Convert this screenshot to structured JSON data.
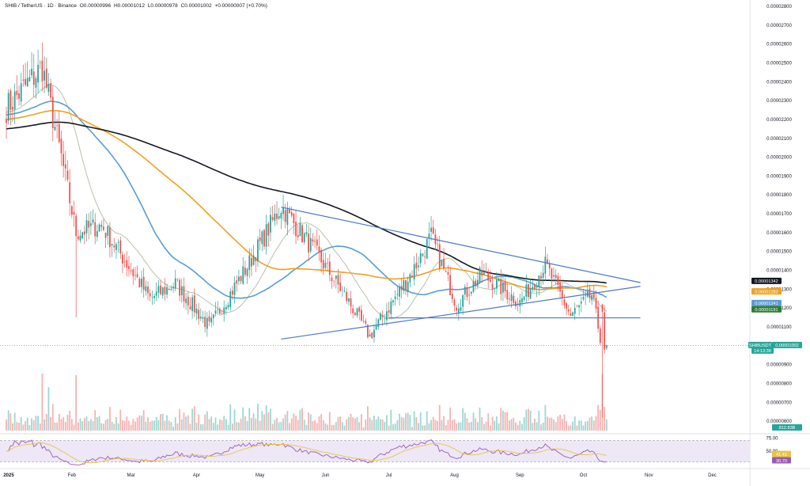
{
  "header": {
    "symbol_line": "SHIB / TetherUS · 1D · Binance",
    "open": "O0.00000996",
    "high": "H0.00001012",
    "low": "L0.00000978",
    "close": "C0.00001002",
    "change": "+0.00000007 (+0.70%)"
  },
  "colors": {
    "up": "#26a69a",
    "down": "#ef5350",
    "ma_short": "#b5c2a8",
    "ma_mid": "#5b9bd5",
    "ma_orange": "#f0a020",
    "ma_black": "#131722",
    "trendline": "#4a78c8",
    "rsi": "#9b59b6",
    "rsi_ma": "#e8c547",
    "rsi_band": "#ede7f6"
  },
  "chart_data": [
    {
      "type": "candlestick",
      "symbol": "SHIB/USDT",
      "timeframe": "1D",
      "exchange": "Binance",
      "y_ticks": [
        "0.00002800",
        "0.00002700",
        "0.00002600",
        "0.00002500",
        "0.00002400",
        "0.00002300",
        "0.00002200",
        "0.00002100",
        "0.00002000",
        "0.00001900",
        "0.00001800",
        "0.00001700",
        "0.00001600",
        "0.00001500",
        "0.00001400",
        "0.00001300",
        "0.00001200",
        "0.00001100",
        "0.00001000",
        "0.00000900",
        "0.00000800",
        "0.00000700",
        "0.00000600"
      ],
      "ylim": [
        5.5e-06,
        2.8e-05
      ],
      "x_labels": [
        "2025",
        "Feb",
        "Mar",
        "Apr",
        "May",
        "Jun",
        "Jul",
        "Aug",
        "Sep",
        "Oct",
        "Nov",
        "Dec"
      ],
      "price_labels": [
        {
          "text": "0.00001342",
          "color": "#131722",
          "value": 1.342e-05
        },
        {
          "text": "0.00001282",
          "color": "#f0a020",
          "value": 1.282e-05
        },
        {
          "text": "0.00001241",
          "color": "#5b9bd5",
          "value": 1.241e-05
        },
        {
          "text": "0.00001191",
          "color": "#2e7d32",
          "value": 1.191e-05
        },
        {
          "text": "SHIBUSDT",
          "color": "#26a69a",
          "value": 1.002e-05
        },
        {
          "text": "0.00001002",
          "color": "#26a69a",
          "value": 1.002e-05
        },
        {
          "text": "14:13:38",
          "color": "#26a69a",
          "value": 1.002e-05
        }
      ],
      "triangle_lines": [
        {
          "from": [
            "2025-05-11",
            1.735e-05
          ],
          "to": [
            "2025-10-28",
            1.335e-05
          ]
        },
        {
          "from": [
            "2025-05-11",
            1.035e-05
          ],
          "to": [
            "2025-10-28",
            1.315e-05
          ]
        }
      ],
      "support_line": {
        "from": [
          "2025-07-01",
          1.148e-05
        ],
        "to": [
          "2025-10-28",
          1.148e-05
        ]
      },
      "candles_ohlc_keypoints": [
        {
          "date": "2025-01-01",
          "close": 2.26e-05
        },
        {
          "date": "2025-01-18",
          "close": 2.48e-05
        },
        {
          "date": "2025-01-27",
          "close": 2e-05
        },
        {
          "date": "2025-02-03",
          "close": 1.6e-05
        },
        {
          "date": "2025-02-15",
          "close": 1.64e-05
        },
        {
          "date": "2025-03-10",
          "close": 1.25e-05
        },
        {
          "date": "2025-03-22",
          "close": 1.33e-05
        },
        {
          "date": "2025-04-07",
          "close": 1.1e-05
        },
        {
          "date": "2025-04-25",
          "close": 1.42e-05
        },
        {
          "date": "2025-05-11",
          "close": 1.74e-05
        },
        {
          "date": "2025-05-27",
          "close": 1.5e-05
        },
        {
          "date": "2025-06-10",
          "close": 1.27e-05
        },
        {
          "date": "2025-06-22",
          "close": 1.05e-05
        },
        {
          "date": "2025-07-13",
          "close": 1.41e-05
        },
        {
          "date": "2025-07-21",
          "close": 1.58e-05
        },
        {
          "date": "2025-08-02",
          "close": 1.22e-05
        },
        {
          "date": "2025-08-14",
          "close": 1.38e-05
        },
        {
          "date": "2025-09-01",
          "close": 1.23e-05
        },
        {
          "date": "2025-09-13",
          "close": 1.43e-05
        },
        {
          "date": "2025-09-25",
          "close": 1.16e-05
        },
        {
          "date": "2025-10-05",
          "close": 1.27e-05
        },
        {
          "date": "2025-10-10",
          "close": 9.9e-06
        },
        {
          "date": "2025-10-12",
          "close": 1.002e-05
        }
      ]
    },
    {
      "type": "bar",
      "name": "Volume",
      "last_value_label": "812.83B"
    },
    {
      "type": "line",
      "name": "RSI",
      "y_ticks": [
        "75.00",
        "50.00"
      ],
      "labels": [
        {
          "text": "41.41",
          "color": "#e8c547"
        },
        {
          "text": "30.70",
          "color": "#9b59b6"
        }
      ],
      "ylim": [
        20,
        80
      ]
    }
  ]
}
